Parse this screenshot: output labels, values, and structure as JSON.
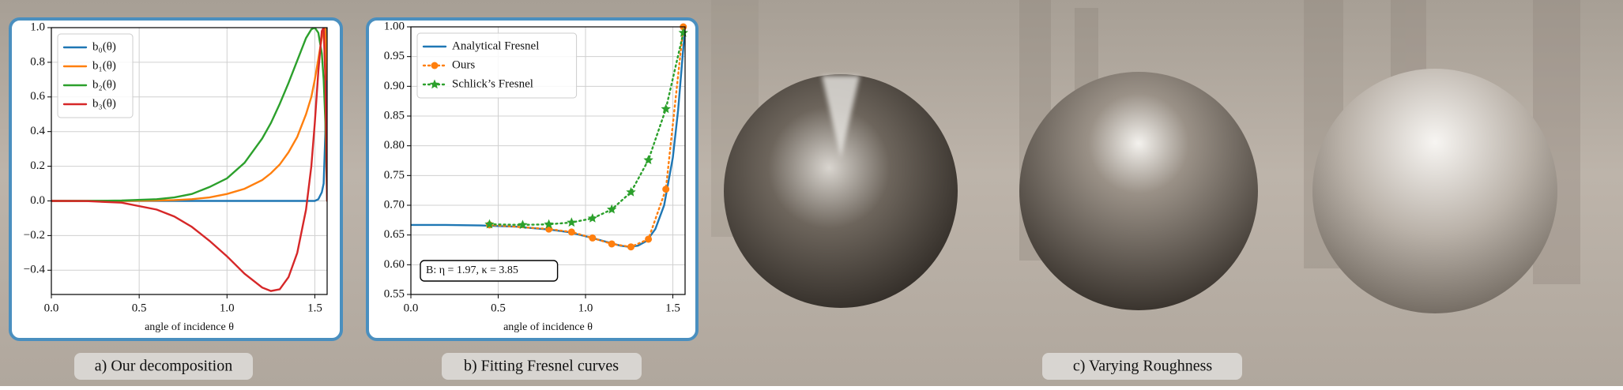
{
  "chart_data": [
    {
      "type": "line",
      "xlabel": "angle of incidence θ",
      "x": [
        0,
        0.2,
        0.4,
        0.6,
        0.7,
        0.8,
        0.9,
        1.0,
        1.1,
        1.2,
        1.25,
        1.3,
        1.35,
        1.4,
        1.45,
        1.48,
        1.5,
        1.52,
        1.54,
        1.55,
        1.56,
        1.57
      ],
      "series": [
        {
          "name": "b₀(θ)",
          "color": "#1f77b4",
          "linestyle": "solid",
          "values": [
            0,
            0,
            0,
            0,
            0,
            0,
            0,
            0,
            0,
            0,
            0,
            0,
            0,
            0,
            0,
            0,
            0,
            0.01,
            0.05,
            0.1,
            0.4,
            1.0
          ]
        },
        {
          "name": "b₁(θ)",
          "color": "#ff7f0e",
          "linestyle": "solid",
          "values": [
            0,
            0,
            0,
            0.002,
            0.005,
            0.01,
            0.02,
            0.04,
            0.07,
            0.12,
            0.16,
            0.21,
            0.28,
            0.37,
            0.5,
            0.6,
            0.7,
            0.82,
            0.94,
            0.99,
            1.0,
            0.7
          ]
        },
        {
          "name": "b₂(θ)",
          "color": "#2ca02c",
          "linestyle": "solid",
          "values": [
            0,
            0,
            0.002,
            0.01,
            0.02,
            0.04,
            0.08,
            0.13,
            0.22,
            0.36,
            0.45,
            0.56,
            0.68,
            0.81,
            0.94,
            0.99,
            1.0,
            0.97,
            0.85,
            0.7,
            0.45,
            0.0
          ]
        },
        {
          "name": "b₃(θ)",
          "color": "#d62728",
          "linestyle": "solid",
          "values": [
            0,
            -0.001,
            -0.01,
            -0.05,
            -0.09,
            -0.15,
            -0.23,
            -0.32,
            -0.42,
            -0.5,
            -0.52,
            -0.51,
            -0.44,
            -0.3,
            -0.05,
            0.2,
            0.45,
            0.75,
            0.98,
            1.0,
            0.7,
            0.0
          ]
        }
      ],
      "xlim": [
        0,
        1.57
      ],
      "xticks": [
        {
          "value": 0,
          "label": "0.0"
        },
        0.5,
        {
          "value": 1,
          "label": "1.0"
        },
        1.5
      ],
      "ylim": [
        -0.54,
        1.0
      ],
      "yticks": [
        {
          "value": -0.4,
          "label": "−0.4"
        },
        {
          "value": -0.2,
          "label": "−0.2"
        },
        {
          "value": 0,
          "label": "0.0"
        },
        0.2,
        0.4,
        0.6,
        0.8,
        {
          "value": 1,
          "label": "1.0"
        }
      ],
      "grid": true,
      "legend": "upper left"
    },
    {
      "type": "line",
      "xlabel": "angle of incidence θ",
      "annotation": "B: η = 1.97, κ = 3.85",
      "series": [
        {
          "name": "Analytical Fresnel",
          "color": "#1f77b4",
          "linestyle": "solid",
          "x": [
            0,
            0.2,
            0.4,
            0.6,
            0.8,
            0.9,
            1.0,
            1.1,
            1.2,
            1.25,
            1.3,
            1.35,
            1.4,
            1.45,
            1.5,
            1.53,
            1.55,
            1.57
          ],
          "values": [
            0.667,
            0.667,
            0.666,
            0.664,
            0.659,
            0.655,
            0.648,
            0.64,
            0.632,
            0.63,
            0.632,
            0.64,
            0.66,
            0.7,
            0.78,
            0.86,
            0.93,
            1.0
          ]
        },
        {
          "name": "Ours",
          "color": "#ff7f0e",
          "linestyle": "dotted",
          "marker": "circle",
          "x": [
            0.45,
            0.79,
            0.92,
            1.04,
            1.15,
            1.26,
            1.36,
            1.46,
            1.56
          ],
          "values": [
            0.667,
            0.66,
            0.655,
            0.645,
            0.635,
            0.63,
            0.643,
            0.727,
            1.0
          ]
        },
        {
          "name": "Schlick’s Fresnel",
          "color": "#2ca02c",
          "linestyle": "dotted",
          "marker": "star",
          "x": [
            0.45,
            0.64,
            0.79,
            0.92,
            1.04,
            1.15,
            1.26,
            1.36,
            1.46,
            1.56
          ],
          "values": [
            0.668,
            0.667,
            0.668,
            0.671,
            0.678,
            0.693,
            0.722,
            0.776,
            0.862,
            0.99
          ]
        }
      ],
      "xlim": [
        0,
        1.57
      ],
      "xticks": [
        {
          "value": 0,
          "label": "0.0"
        },
        0.5,
        {
          "value": 1,
          "label": "1.0"
        },
        1.5
      ],
      "ylim": [
        0.55,
        1.0
      ],
      "yticks": [
        0.55,
        {
          "value": 0.6,
          "label": "0.60"
        },
        0.65,
        {
          "value": 0.7,
          "label": "0.70"
        },
        0.75,
        {
          "value": 0.8,
          "label": "0.80"
        },
        0.85,
        {
          "value": 0.9,
          "label": "0.90"
        },
        0.95,
        {
          "value": 1,
          "label": "1.00"
        }
      ],
      "grid": true,
      "legend": "upper left"
    }
  ],
  "captions": [
    "a) Our decomposition",
    "b) Fitting Fresnel curves",
    "c) Varying Roughness"
  ]
}
